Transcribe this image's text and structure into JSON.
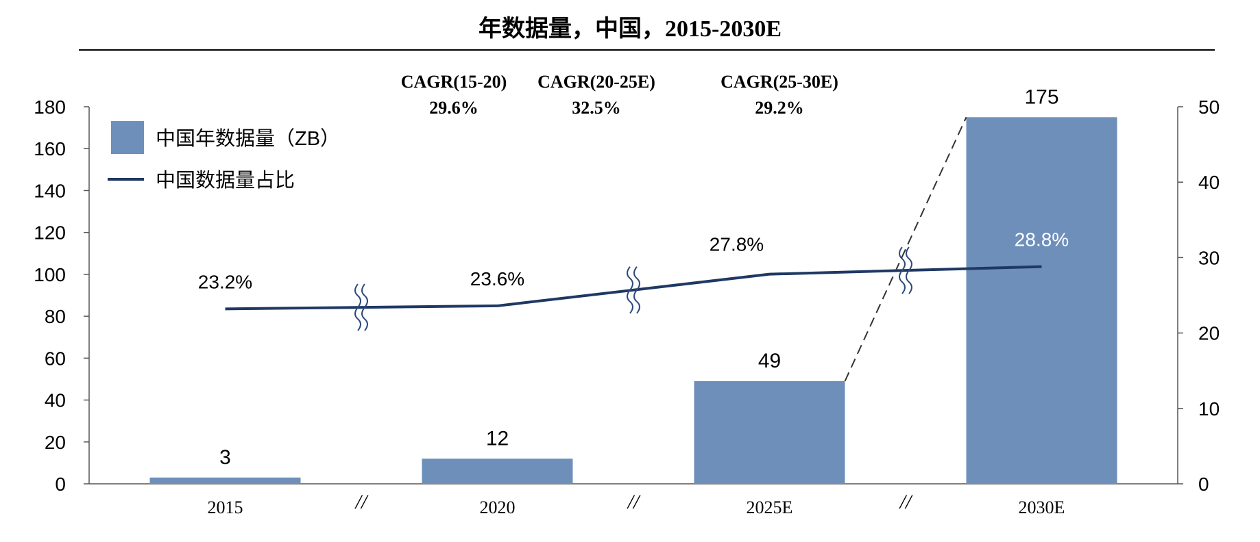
{
  "chart_data": {
    "type": "bar",
    "title": "年数据量，中国，2015-2030E",
    "categories": [
      "2015",
      "2020",
      "2025E",
      "2030E"
    ],
    "series": [
      {
        "name": "中国年数据量（ZB）",
        "type": "bar",
        "axis": "left",
        "values": [
          3,
          12,
          49,
          175
        ],
        "labels": [
          "3",
          "12",
          "49",
          "175"
        ],
        "color": "#6e8fba"
      },
      {
        "name": "中国数据量占比",
        "type": "line",
        "axis": "right",
        "values": [
          23.2,
          23.6,
          27.8,
          28.8
        ],
        "labels": [
          "23.2%",
          "23.6%",
          "27.8%",
          "28.8%"
        ],
        "color": "#1f3864"
      }
    ],
    "y_left": {
      "range": [
        0,
        180
      ],
      "ticks": [
        "0",
        "20",
        "40",
        "60",
        "80",
        "100",
        "120",
        "140",
        "160",
        "180"
      ]
    },
    "y_right": {
      "range": [
        0,
        50
      ],
      "ticks": [
        "0",
        "10",
        "20",
        "30",
        "40",
        "50"
      ]
    },
    "cagr": [
      {
        "label": "CAGR(15-20)",
        "value": "29.6%"
      },
      {
        "label": "CAGR(20-25E)",
        "value": "32.5%"
      },
      {
        "label": "CAGR(25-30E)",
        "value": "29.2%"
      }
    ],
    "legend_position": "top-left",
    "grid": false,
    "axis_breaks": true,
    "break_marks": [
      "//",
      "//",
      "//"
    ]
  }
}
